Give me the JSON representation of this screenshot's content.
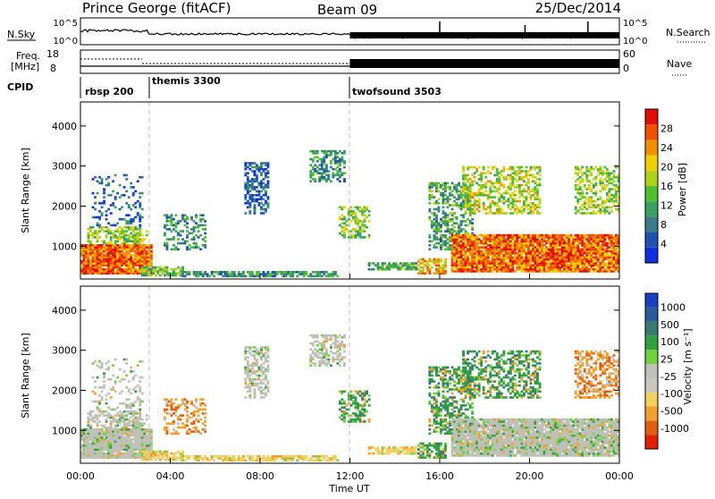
{
  "header": {
    "station": "Prince George (fitACF)",
    "beam": "Beam 09",
    "date": "25/Dec/2014"
  },
  "noise_panel": {
    "left_label": "N.Sky",
    "right_label": "N.Search",
    "left_ticks": [
      "10^5",
      "10^0"
    ],
    "right_ticks": [
      "10^5",
      "10^0"
    ]
  },
  "freq_panel": {
    "left_label_line1": "Freq.",
    "left_label_line2": "[MHz]",
    "right_label": "Nave",
    "left_ticks": [
      "18",
      "8"
    ],
    "right_ticks": [
      "60",
      "0"
    ]
  },
  "cpid_panel": {
    "label": "CPID",
    "modes": [
      {
        "name": "rbsp 200",
        "start_hour": 0
      },
      {
        "name": "themis 3300",
        "start_hour": 2.75
      },
      {
        "name": "twofsound 3503",
        "start_hour": 12
      }
    ]
  },
  "x_axis": {
    "label": "Time UT",
    "ticks": [
      "00:00",
      "04:00",
      "08:00",
      "12:00",
      "16:00",
      "20:00",
      "00:00"
    ]
  },
  "chart_data": [
    {
      "type": "heatmap",
      "name": "power",
      "ylabel": "Slant Range [km]",
      "xlim": [
        0,
        24
      ],
      "ylim": [
        180,
        4600
      ],
      "yticks": [
        "1000",
        "2000",
        "3000",
        "4000"
      ],
      "colorbar_label": "Power [dB]",
      "colorbar_ticks": [
        "4",
        "8",
        "12",
        "16",
        "20",
        "24",
        "28"
      ],
      "colorbar_colors": [
        "#1030e0",
        "#2050b0",
        "#3a7a8a",
        "#3aa060",
        "#50c030",
        "#b0d020",
        "#f0d000",
        "#f09000",
        "#f05000",
        "#e01000"
      ],
      "colorbar_range": [
        0,
        32
      ]
    },
    {
      "type": "heatmap",
      "name": "velocity",
      "ylabel": "Slant Range [km]",
      "xlim": [
        0,
        24
      ],
      "ylim": [
        180,
        4600
      ],
      "yticks": [
        "1000",
        "2000",
        "3000",
        "4000"
      ],
      "colorbar_label": "Velocity [m s⁻¹]",
      "colorbar_ticks": [
        "1000",
        "500",
        "100",
        "25",
        "-25",
        "-100",
        "-500",
        "-1000"
      ],
      "colorbar_colors": [
        "#1840c0",
        "#2a5a9a",
        "#3a7a70",
        "#30a040",
        "#70d040",
        "#c0c0b8",
        "#c8c8c0",
        "#f0d060",
        "#f0a030",
        "#e06010",
        "#e02000"
      ]
    }
  ]
}
